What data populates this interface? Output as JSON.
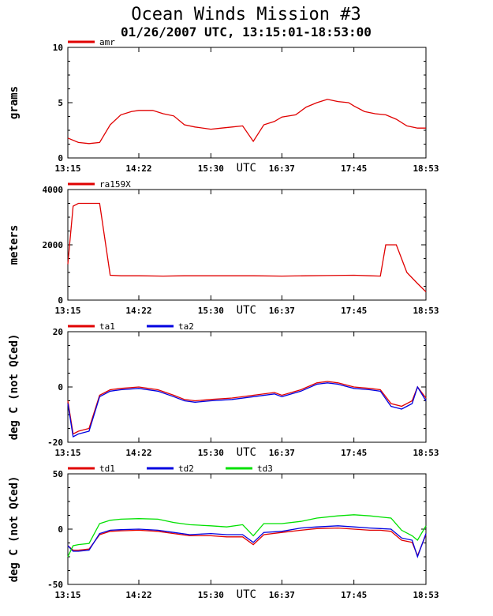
{
  "title": "Ocean Winds Mission #3",
  "subtitle": "01/26/2007  UTC, 13:15:01-18:53:00",
  "colors": {
    "red": "#e00000",
    "blue": "#0000e0",
    "green": "#00e000",
    "frame": "#000000"
  },
  "chart_data": [
    {
      "type": "line",
      "ylabel": "grams",
      "xlabel": "UTC",
      "ylim": [
        0,
        10
      ],
      "yticks": [
        "0",
        "5",
        "10"
      ],
      "xticks": [
        "13:15",
        "14:22",
        "15:30",
        "16:37",
        "17:45",
        "18:53"
      ],
      "x": [
        "13:15",
        "13:25",
        "13:35",
        "13:45",
        "13:55",
        "14:05",
        "14:15",
        "14:22",
        "14:35",
        "14:45",
        "14:55",
        "15:05",
        "15:15",
        "15:30",
        "15:40",
        "15:50",
        "16:00",
        "16:10",
        "16:20",
        "16:30",
        "16:37",
        "16:50",
        "17:00",
        "17:10",
        "17:20",
        "17:30",
        "17:40",
        "17:45",
        "17:55",
        "18:05",
        "18:15",
        "18:25",
        "18:35",
        "18:45",
        "18:53"
      ],
      "series": [
        {
          "name": "amr",
          "color": "red",
          "values": [
            1.8,
            1.4,
            1.3,
            1.4,
            3.0,
            3.9,
            4.2,
            4.3,
            4.3,
            4.0,
            3.8,
            3.0,
            2.8,
            2.6,
            2.7,
            2.8,
            2.9,
            1.5,
            3.0,
            3.3,
            3.7,
            3.9,
            4.6,
            5.0,
            5.3,
            5.1,
            5.0,
            4.7,
            4.2,
            4.0,
            3.9,
            3.5,
            2.9,
            2.7,
            2.7
          ]
        }
      ]
    },
    {
      "type": "line",
      "ylabel": "meters",
      "xlabel": "UTC",
      "ylim": [
        0,
        4000
      ],
      "yticks": [
        "0",
        "2000",
        "4000"
      ],
      "xticks": [
        "13:15",
        "14:22",
        "15:30",
        "16:37",
        "17:45",
        "18:53"
      ],
      "x": [
        "13:15",
        "13:20",
        "13:25",
        "13:35",
        "13:45",
        "13:50",
        "13:55",
        "14:05",
        "14:22",
        "14:45",
        "15:05",
        "15:30",
        "15:50",
        "16:10",
        "16:37",
        "17:00",
        "17:20",
        "17:45",
        "18:00",
        "18:10",
        "18:15",
        "18:25",
        "18:35",
        "18:45",
        "18:53"
      ],
      "series": [
        {
          "name": "ra159X",
          "color": "red",
          "values": [
            1300,
            3400,
            3500,
            3500,
            3500,
            2200,
            900,
            880,
            880,
            870,
            880,
            880,
            880,
            880,
            870,
            880,
            890,
            900,
            880,
            870,
            2000,
            2000,
            1000,
            600,
            300
          ]
        }
      ]
    },
    {
      "type": "line",
      "ylabel": "deg C (not QCed)",
      "xlabel": "UTC",
      "ylim": [
        -20,
        20
      ],
      "yticks": [
        "-20",
        "0",
        "20"
      ],
      "xticks": [
        "13:15",
        "14:22",
        "15:30",
        "16:37",
        "17:45",
        "18:53"
      ],
      "x": [
        "13:15",
        "13:20",
        "13:25",
        "13:35",
        "13:45",
        "13:55",
        "14:05",
        "14:22",
        "14:40",
        "14:55",
        "15:05",
        "15:15",
        "15:30",
        "15:50",
        "16:10",
        "16:30",
        "16:37",
        "16:55",
        "17:10",
        "17:20",
        "17:30",
        "17:45",
        "18:00",
        "18:10",
        "18:20",
        "18:30",
        "18:40",
        "18:45",
        "18:53"
      ],
      "series": [
        {
          "name": "ta1",
          "color": "red",
          "values": [
            -5,
            -17,
            -16,
            -15,
            -3,
            -1,
            -0.5,
            0,
            -1,
            -3,
            -4.5,
            -5,
            -4.5,
            -4,
            -3,
            -2,
            -3,
            -1,
            1.5,
            2,
            1.5,
            0,
            -0.5,
            -1,
            -6,
            -7,
            -5,
            0,
            -4
          ]
        },
        {
          "name": "ta2",
          "color": "blue",
          "values": [
            -6,
            -18,
            -17,
            -16,
            -3.5,
            -1.5,
            -1,
            -0.5,
            -1.5,
            -3.5,
            -5,
            -5.5,
            -5,
            -4.5,
            -3.5,
            -2.5,
            -3.5,
            -1.5,
            1,
            1.5,
            1,
            -0.5,
            -1,
            -1.5,
            -7,
            -8,
            -6,
            0,
            -5
          ]
        }
      ]
    },
    {
      "type": "line",
      "ylabel": "deg C (not QCed)",
      "xlabel": "UTC",
      "ylim": [
        -50,
        50
      ],
      "yticks": [
        "-50",
        "0",
        "50"
      ],
      "xticks": [
        "13:15",
        "14:22",
        "15:30",
        "16:37",
        "17:45",
        "18:53"
      ],
      "x": [
        "13:15",
        "13:20",
        "13:25",
        "13:35",
        "13:45",
        "13:55",
        "14:05",
        "14:22",
        "14:40",
        "14:55",
        "15:10",
        "15:30",
        "15:45",
        "16:00",
        "16:10",
        "16:20",
        "16:37",
        "16:55",
        "17:10",
        "17:30",
        "17:45",
        "18:00",
        "18:10",
        "18:20",
        "18:30",
        "18:40",
        "18:45",
        "18:53"
      ],
      "series": [
        {
          "name": "td1",
          "color": "red",
          "values": [
            -15,
            -19,
            -19,
            -18,
            -5,
            -2,
            -1.5,
            -1,
            -2,
            -4,
            -6,
            -6,
            -7,
            -7,
            -14,
            -5,
            -3,
            -1,
            0.5,
            1,
            0,
            -1,
            -1,
            -2,
            -10,
            -12,
            -24,
            -5
          ]
        },
        {
          "name": "td2",
          "color": "blue",
          "values": [
            -15,
            -20,
            -20,
            -19,
            -4,
            -1,
            -0.5,
            0,
            -1,
            -3,
            -5,
            -4,
            -5,
            -5,
            -12,
            -3,
            -2,
            1,
            2,
            3,
            2,
            1,
            0.5,
            0,
            -8,
            -10,
            -25,
            -4
          ]
        },
        {
          "name": "td3",
          "color": "green",
          "values": [
            -25,
            -15,
            -14,
            -13,
            5,
            8,
            9,
            9.5,
            9,
            6,
            4,
            3,
            2,
            4,
            -6,
            5,
            5,
            7,
            10,
            12,
            13,
            12,
            11,
            10,
            -1,
            -6,
            -10,
            3
          ]
        }
      ]
    }
  ]
}
